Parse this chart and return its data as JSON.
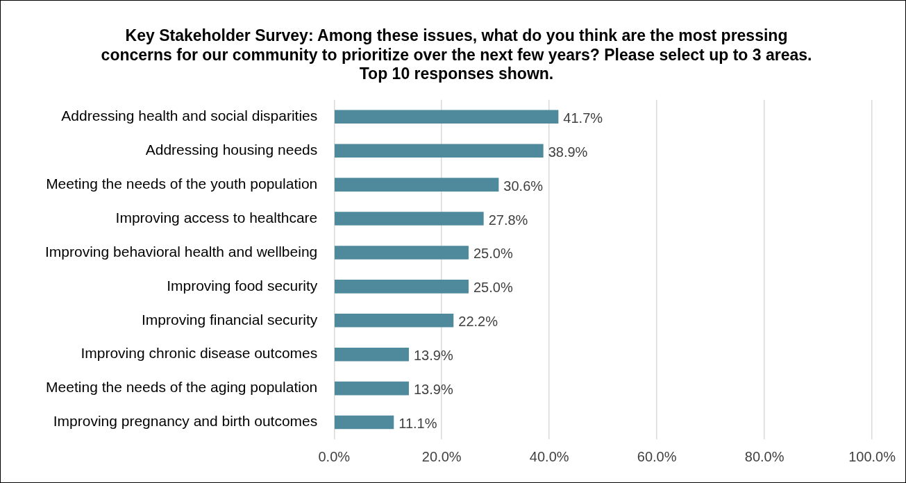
{
  "chart_data": {
    "type": "bar",
    "orientation": "horizontal",
    "title": "Key Stakeholder Survey: Among these issues, what do you think are the most pressing concerns for our community to prioritize over the next few years? Please select up to 3 areas. Top 10 responses shown.",
    "categories": [
      "Addressing health and social disparities",
      "Addressing housing needs",
      "Meeting the needs of the youth population",
      "Improving access to healthcare",
      "Improving behavioral health and wellbeing",
      "Improving food security",
      "Improving financial security",
      "Improving chronic disease outcomes",
      "Meeting the needs of the aging population",
      "Improving pregnancy and birth outcomes"
    ],
    "values": [
      41.7,
      38.9,
      30.6,
      27.8,
      25.0,
      25.0,
      22.2,
      13.9,
      13.9,
      11.1
    ],
    "value_labels": [
      "41.7%",
      "38.9%",
      "30.6%",
      "27.8%",
      "25.0%",
      "25.0%",
      "22.2%",
      "13.9%",
      "13.9%",
      "11.1%"
    ],
    "color": "#4e8a9c",
    "xlim": [
      0,
      100
    ],
    "xticks": [
      {
        "value": 0,
        "label": "0.0%"
      },
      {
        "value": 20,
        "label": "20.0%"
      },
      {
        "value": 40,
        "label": "40.0%"
      },
      {
        "value": 60,
        "label": "60.0%"
      },
      {
        "value": 80,
        "label": "80.0%"
      },
      {
        "value": 100,
        "label": "100.0%"
      }
    ],
    "grid": "x",
    "legend": false
  }
}
